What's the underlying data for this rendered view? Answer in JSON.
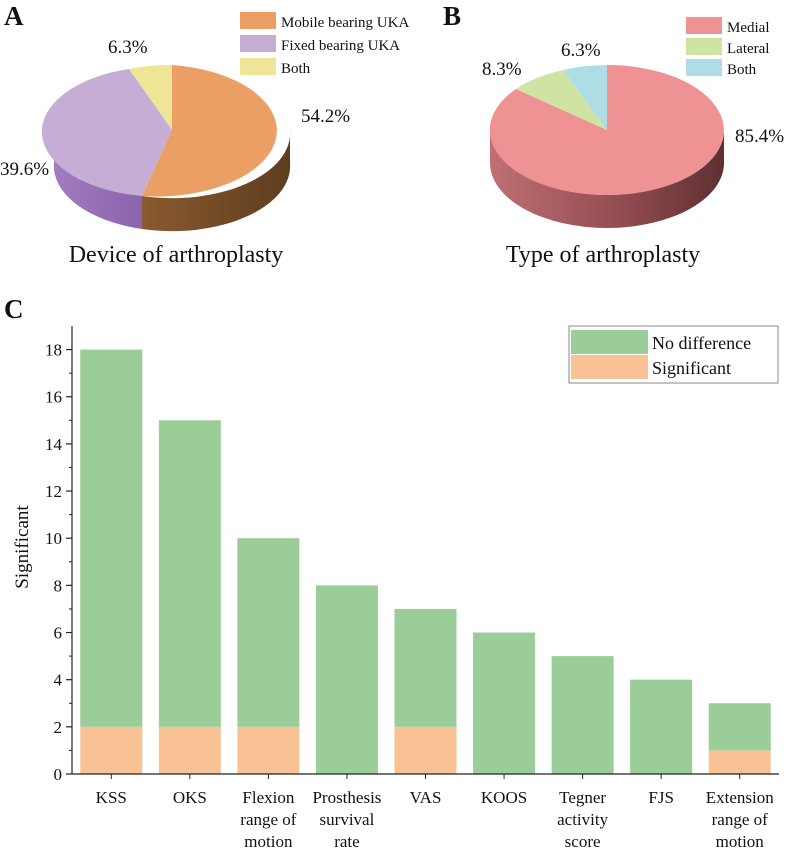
{
  "panels": {
    "a": {
      "letter": "A",
      "chart_title": "Device of arthroplasty",
      "legend": [
        {
          "label": "Mobile bearing UKA",
          "color": "#EC9F65"
        },
        {
          "label": "Fixed bearing UKA",
          "color": "#C5ADD6"
        },
        {
          "label": "Both",
          "color": "#EEE596"
        }
      ],
      "labels": [
        "54.2%",
        "39.6%",
        "6.3%"
      ]
    },
    "b": {
      "letter": "B",
      "chart_title": "Type of arthroplasty",
      "legend": [
        {
          "label": "Medial",
          "color": "#EE9294"
        },
        {
          "label": "Lateral",
          "color": "#CFE3A2"
        },
        {
          "label": "Both",
          "color": "#AEDDE6"
        }
      ],
      "labels": [
        "85.4%",
        "8.3%",
        "6.3%"
      ]
    },
    "c": {
      "letter": "C",
      "ylabel": "Significant",
      "legend": [
        {
          "label": "No difference",
          "color": "#9ACD98"
        },
        {
          "label": "Significant",
          "color": "#F8C294"
        }
      ],
      "category_lines": [
        [
          "KSS"
        ],
        [
          "OKS"
        ],
        [
          "Flexion",
          "range of",
          "motion"
        ],
        [
          "Prosthesis",
          "survival",
          "rate"
        ],
        [
          "VAS"
        ],
        [
          "KOOS"
        ],
        [
          "Tegner",
          "activity",
          "score"
        ],
        [
          "FJS"
        ],
        [
          "Extension",
          "range of",
          "motion"
        ]
      ],
      "yticks": [
        "0",
        "2",
        "4",
        "6",
        "8",
        "10",
        "12",
        "14",
        "16",
        "18"
      ]
    }
  },
  "chart_data": [
    {
      "type": "pie",
      "title": "Device of arthroplasty",
      "categories": [
        "Mobile bearing UKA",
        "Fixed bearing UKA",
        "Both"
      ],
      "values": [
        54.2,
        39.6,
        6.3
      ]
    },
    {
      "type": "pie",
      "title": "Type of arthroplasty",
      "categories": [
        "Medial",
        "Lateral",
        "Both"
      ],
      "values": [
        85.4,
        8.3,
        6.3
      ]
    },
    {
      "type": "bar",
      "stacked": true,
      "title": "",
      "xlabel": "",
      "ylabel": "Significant",
      "ylim": [
        0,
        19
      ],
      "categories": [
        "KSS",
        "OKS",
        "Flexion range of motion",
        "Prosthesis survival rate",
        "VAS",
        "KOOS",
        "Tegner activity score",
        "FJS",
        "Extension range of motion"
      ],
      "series": [
        {
          "name": "Significant",
          "values": [
            2,
            2,
            2,
            0,
            2,
            0,
            0,
            0,
            1
          ]
        },
        {
          "name": "No difference",
          "values": [
            16,
            13,
            8,
            8,
            5,
            6,
            5,
            4,
            2
          ]
        }
      ],
      "legend_position": "top-right"
    }
  ]
}
